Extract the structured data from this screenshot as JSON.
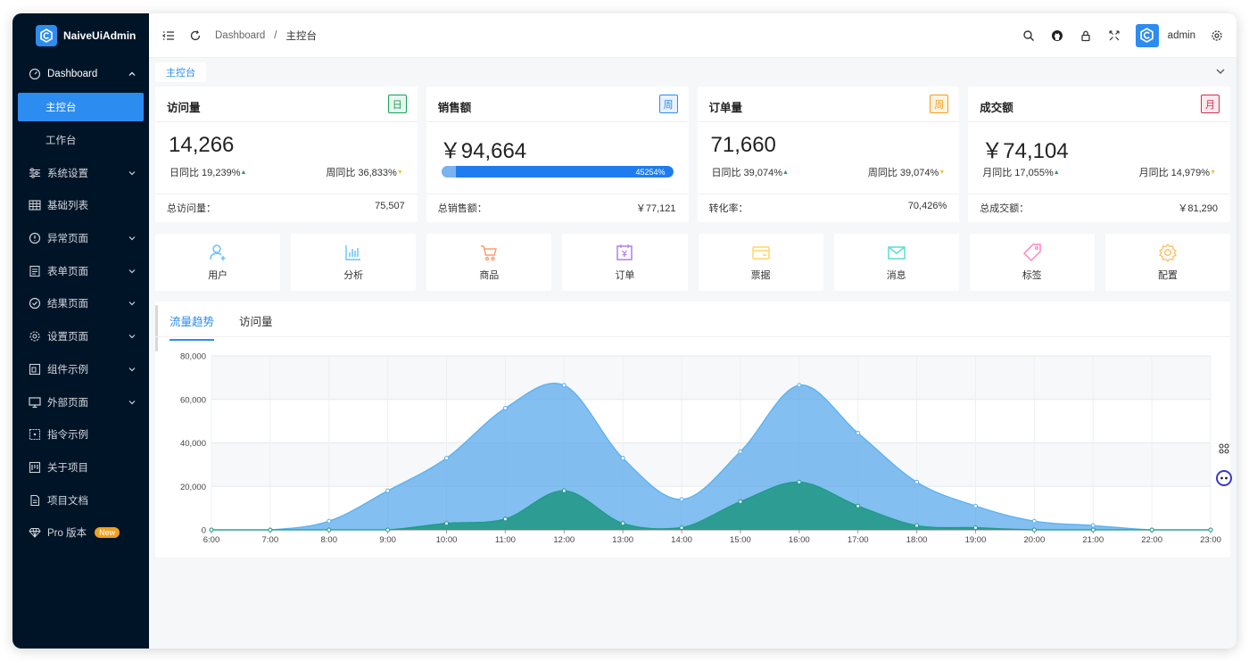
{
  "app": {
    "name": "NaiveUiAdmin"
  },
  "sidebar": {
    "items": [
      {
        "label": "Dashboard",
        "icon": "dashboard-icon",
        "expanded": true
      },
      {
        "label": "系统设置",
        "icon": "sliders-icon"
      },
      {
        "label": "基础列表",
        "icon": "table-icon"
      },
      {
        "label": "异常页面",
        "icon": "alert-circle-icon"
      },
      {
        "label": "表单页面",
        "icon": "form-icon"
      },
      {
        "label": "结果页面",
        "icon": "check-circle-icon"
      },
      {
        "label": "设置页面",
        "icon": "gear-icon"
      },
      {
        "label": "组件示例",
        "icon": "component-icon"
      },
      {
        "label": "外部页面",
        "icon": "monitor-icon"
      },
      {
        "label": "指令示例",
        "icon": "directive-icon"
      },
      {
        "label": "关于项目",
        "icon": "project-icon"
      },
      {
        "label": "项目文档",
        "icon": "doc-icon"
      },
      {
        "label": "Pro 版本",
        "icon": "diamond-icon",
        "badge": "New"
      }
    ],
    "dashboard_children": [
      {
        "label": "主控台",
        "active": true
      },
      {
        "label": "工作台"
      }
    ]
  },
  "header": {
    "breadcrumb": [
      "Dashboard",
      "主控台"
    ],
    "separator": "/",
    "user": "admin"
  },
  "tabs": {
    "active": "主控台"
  },
  "cards": [
    {
      "title": "访问量",
      "tag": "日",
      "tag_color": "#18a058",
      "value": "14,266",
      "left": "日同比 19,239%",
      "left_trend": "up",
      "right": "周同比 36,833%",
      "right_trend": "down",
      "foot_label": "总访问量：",
      "foot_value": "75,507"
    },
    {
      "title": "销售额",
      "tag": "周",
      "tag_color": "#2d8cf0",
      "value": "￥94,664",
      "progress_label": "45254%",
      "progress_fraction": 1.0,
      "foot_label": "总销售额：",
      "foot_value": "￥77,121"
    },
    {
      "title": "订单量",
      "tag": "周",
      "tag_color": "#f0a020",
      "value": "71,660",
      "left": "日同比 39,074%",
      "left_trend": "up",
      "right": "周同比 39,074%",
      "right_trend": "down",
      "foot_label": "转化率：",
      "foot_value": "70,426%"
    },
    {
      "title": "成交额",
      "tag": "月",
      "tag_color": "#d03050",
      "value": "￥74,104",
      "left": "月同比 17,055%",
      "left_trend": "up",
      "right": "月同比 14,979%",
      "right_trend": "down",
      "foot_label": "总成交额：",
      "foot_value": "￥81,290"
    }
  ],
  "shortcuts": [
    {
      "label": "用户",
      "icon": "user-icon",
      "color": "#69c0ff"
    },
    {
      "label": "分析",
      "icon": "bar-chart-icon",
      "color": "#69c0ff"
    },
    {
      "label": "商品",
      "icon": "cart-icon",
      "color": "#ff9c6e"
    },
    {
      "label": "订单",
      "icon": "calendar-icon",
      "color": "#b37feb"
    },
    {
      "label": "票据",
      "icon": "card-icon",
      "color": "#ffd666"
    },
    {
      "label": "消息",
      "icon": "mail-icon",
      "color": "#5cdbd3"
    },
    {
      "label": "标签",
      "icon": "tag-icon",
      "color": "#ff85c0"
    },
    {
      "label": "配置",
      "icon": "gear-icon",
      "color": "#ffc069"
    }
  ],
  "chart_tabs": [
    "流量趋势",
    "访问量"
  ],
  "chart_data": {
    "type": "area",
    "x": [
      "6:00",
      "7:00",
      "8:00",
      "9:00",
      "10:00",
      "11:00",
      "12:00",
      "13:00",
      "14:00",
      "15:00",
      "16:00",
      "17:00",
      "18:00",
      "19:00",
      "20:00",
      "21:00",
      "22:00",
      "23:00"
    ],
    "ylim": [
      0,
      80000
    ],
    "yticks": [
      "0",
      "20,000",
      "40,000",
      "60,000",
      "80,000"
    ],
    "ytick_values": [
      0,
      20000,
      40000,
      60000,
      80000
    ],
    "grid": true,
    "series": [
      {
        "color": "#5ab1ef",
        "values": [
          0,
          0,
          4000,
          18000,
          33000,
          56000,
          66500,
          33000,
          14000,
          36000,
          66500,
          44500,
          22000,
          11000,
          4000,
          2000,
          0,
          0
        ]
      },
      {
        "color": "#1f9a8a",
        "values": [
          0,
          0,
          0,
          0,
          3000,
          5000,
          18000,
          3000,
          1000,
          13000,
          22000,
          11000,
          2000,
          1000,
          0,
          0,
          0,
          0
        ]
      }
    ]
  }
}
